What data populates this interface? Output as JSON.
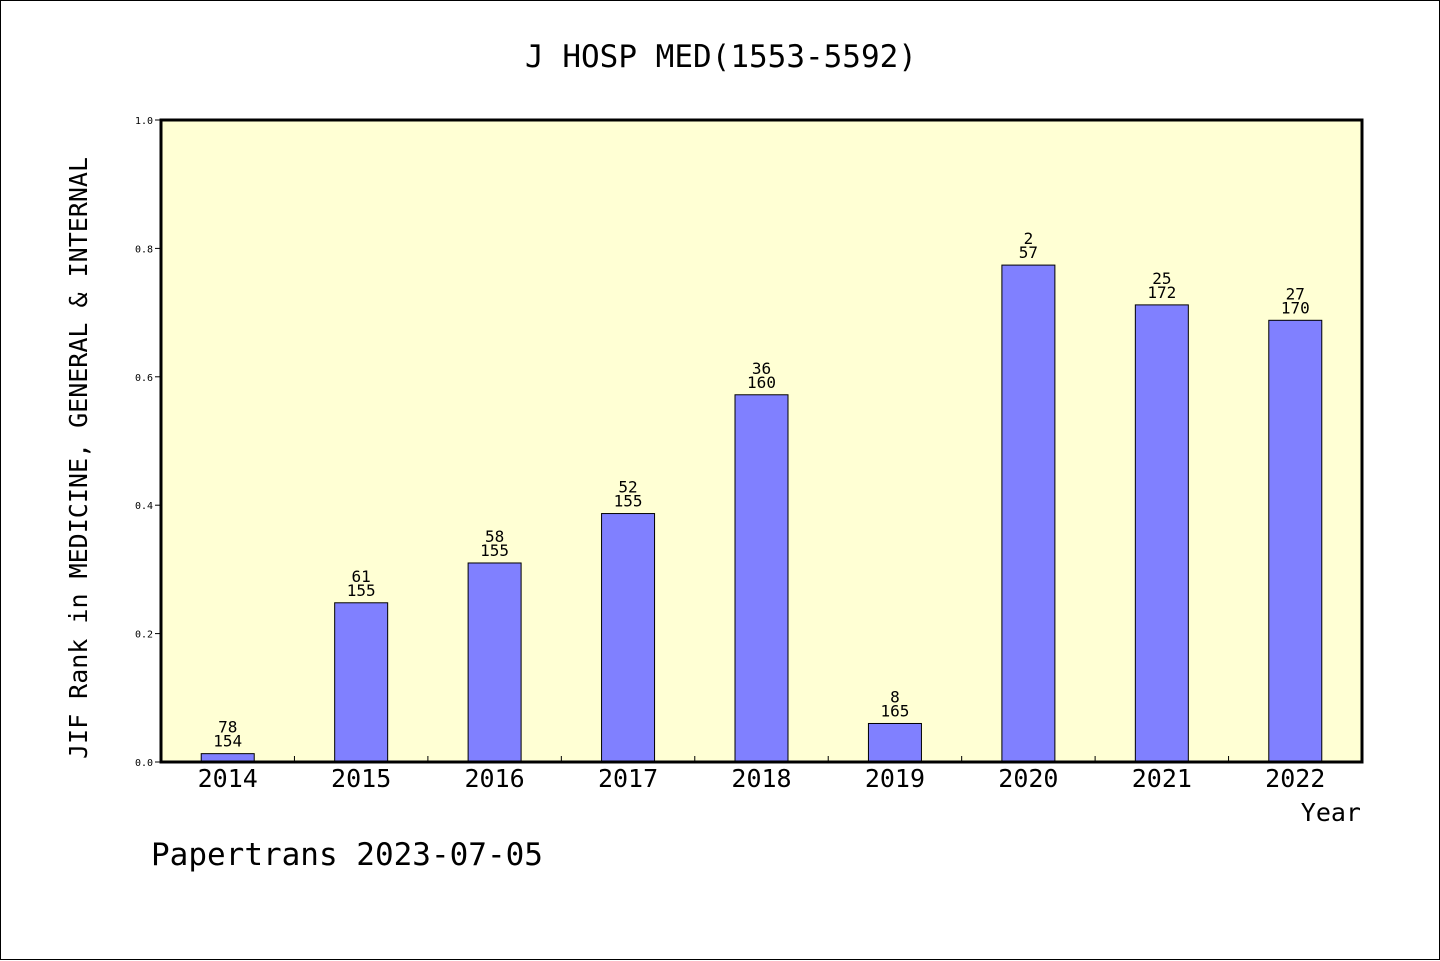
{
  "chart_data": {
    "type": "bar",
    "title": "J HOSP MED(1553-5592)",
    "xlabel": "Year",
    "ylabel": "JIF Rank in MEDICINE, GENERAL & INTERNAL",
    "ylim": [
      0,
      1.0
    ],
    "yticks": [
      "0.0",
      "0.2",
      "0.4",
      "0.6",
      "0.8",
      "1.0"
    ],
    "categories": [
      "2014",
      "2015",
      "2016",
      "2017",
      "2018",
      "2019",
      "2020",
      "2021",
      "2022"
    ],
    "values": [
      0.013,
      0.248,
      0.31,
      0.387,
      0.572,
      0.06,
      0.774,
      0.712,
      0.688
    ],
    "rank_labels": [
      "78",
      "61",
      "58",
      "52",
      "36",
      "8",
      "2",
      "25",
      "27"
    ],
    "total_labels": [
      "154",
      "155",
      "155",
      "155",
      "160",
      "165",
      "57",
      "172",
      "170"
    ],
    "bar_color": "#8080ff",
    "plot_background": "#ffffd4",
    "grid": false
  },
  "footer": {
    "watermark": "Papertrans 2023-07-05"
  }
}
